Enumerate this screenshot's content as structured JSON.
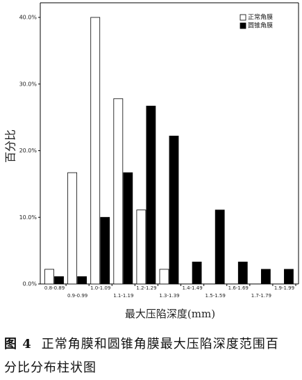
{
  "chart_data": {
    "type": "bar",
    "y_label": "百分比",
    "x_label": "最大压陷深度(mm)",
    "categories": [
      "0.8-0.89",
      "0.9-0.99",
      "1.0-1.09",
      "1.1-1.19",
      "1.2-1.29",
      "1.3-1.39",
      "1.4-1.49",
      "1.5-1.59",
      "1.6-1.69",
      "1.7-1.79",
      "1.9-1.99"
    ],
    "series": [
      {
        "name": "正常角膜",
        "color": "#ffffff",
        "values": [
          2.2,
          16.7,
          40.0,
          27.8,
          11.1,
          2.2,
          0,
          0,
          0,
          0,
          0
        ]
      },
      {
        "name": "圆锥角膜",
        "color": "#000000",
        "values": [
          1.1,
          1.1,
          10.0,
          16.7,
          26.7,
          22.2,
          3.3,
          11.1,
          3.3,
          2.2,
          2.2
        ]
      }
    ],
    "ylim": [
      0,
      40
    ],
    "yticks": [
      {
        "value": 0,
        "label": "0.0%"
      },
      {
        "value": 10,
        "label": "10.0%"
      },
      {
        "value": 20,
        "label": "20.0%"
      },
      {
        "value": 30,
        "label": "30.0%"
      },
      {
        "value": 40,
        "label": "40.0%"
      }
    ],
    "legend": "top-right"
  },
  "figure_label": "图 4",
  "caption": "正常角膜和圆锥角膜最大压陷深度范围百分比分布柱状图"
}
